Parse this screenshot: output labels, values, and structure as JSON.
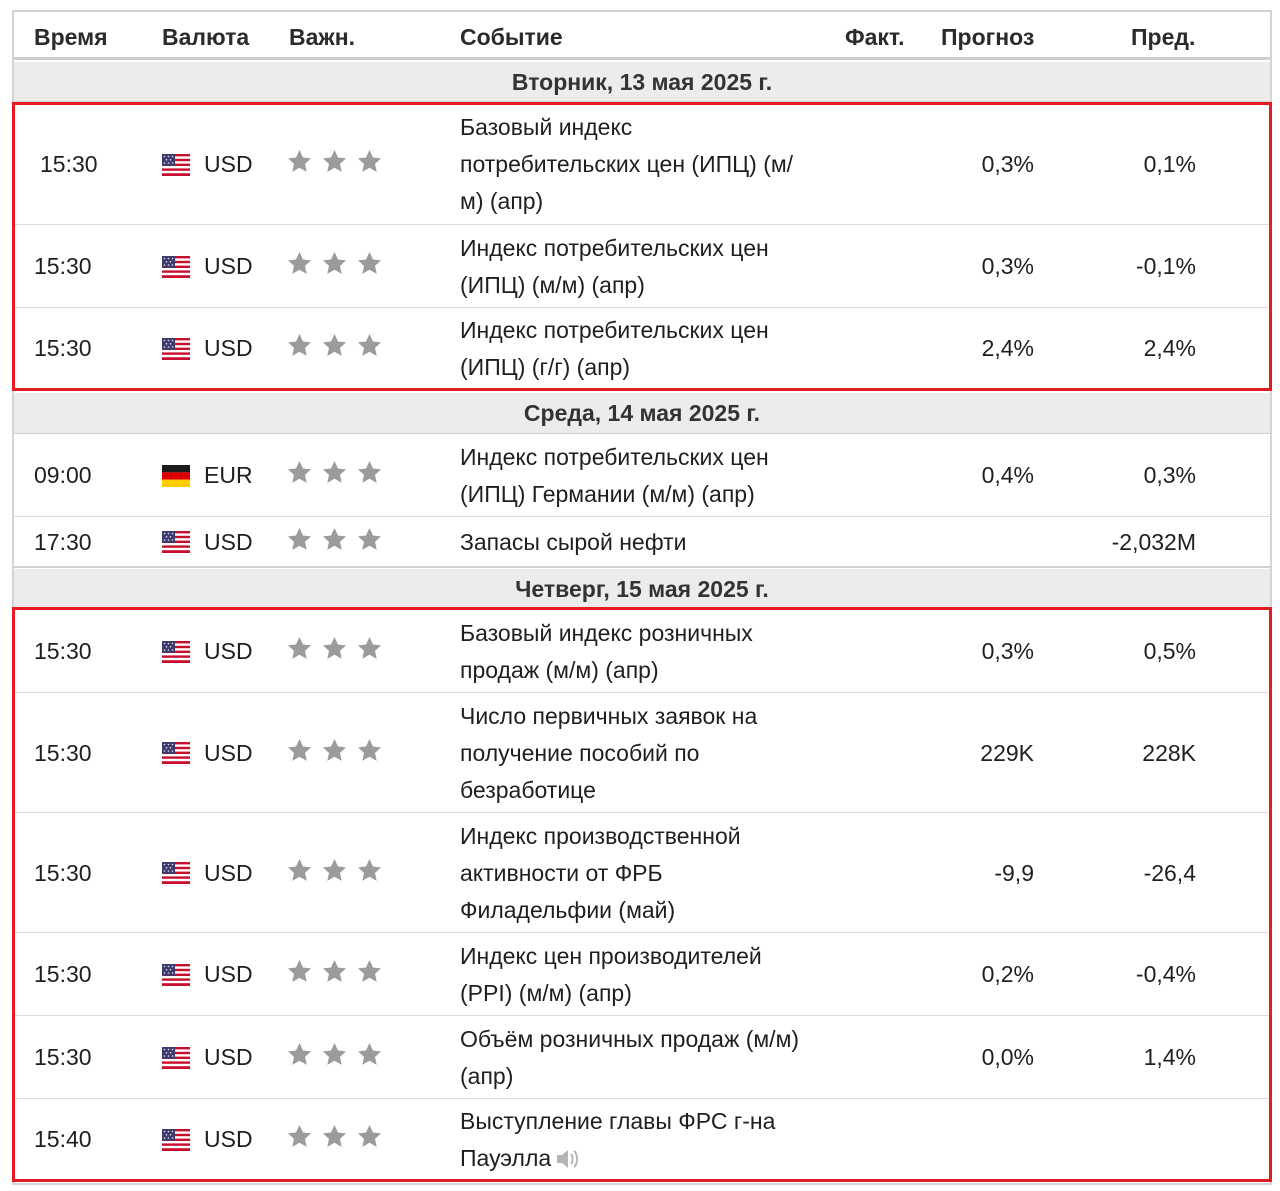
{
  "columns": {
    "time": "Время",
    "currency": "Валюта",
    "importance": "Важн.",
    "event": "Событие",
    "actual": "Факт.",
    "forecast": "Прогноз",
    "previous": "Пред."
  },
  "days": [
    {
      "label": "Вторник, 13 мая 2025 г.",
      "events": [
        {
          "time": "15:30",
          "flag": "us-flag-icon",
          "currency": "USD",
          "stars": 3,
          "event": "Базовый индекс потребительских цен (ИПЦ) (м/м) (апр)",
          "actual": "",
          "forecast": "0,3%",
          "previous": "0,1%"
        },
        {
          "time": "15:30",
          "flag": "us-flag-icon",
          "currency": "USD",
          "stars": 3,
          "event": "Индекс потребительских цен (ИПЦ) (м/м) (апр)",
          "actual": "",
          "forecast": "0,3%",
          "previous": "-0,1%"
        },
        {
          "time": "15:30",
          "flag": "us-flag-icon",
          "currency": "USD",
          "stars": 3,
          "event": "Индекс потребительских цен (ИПЦ) (г/г) (апр)",
          "actual": "",
          "forecast": "2,4%",
          "previous": "2,4%"
        }
      ]
    },
    {
      "label": "Среда, 14 мая 2025 г.",
      "events": [
        {
          "time": "09:00",
          "flag": "de-flag-icon",
          "currency": "EUR",
          "stars": 3,
          "event": "Индекс потребительских цен (ИПЦ) Германии (м/м) (апр)",
          "actual": "",
          "forecast": "0,4%",
          "previous": "0,3%"
        },
        {
          "time": "17:30",
          "flag": "us-flag-icon",
          "currency": "USD",
          "stars": 3,
          "event": "Запасы сырой нефти",
          "actual": "",
          "forecast": "",
          "previous": "-2,032M"
        }
      ]
    },
    {
      "label": "Четверг, 15 мая 2025 г.",
      "events": [
        {
          "time": "15:30",
          "flag": "us-flag-icon",
          "currency": "USD",
          "stars": 3,
          "event": "Базовый индекс розничных продаж (м/м) (апр)",
          "actual": "",
          "forecast": "0,3%",
          "previous": "0,5%"
        },
        {
          "time": "15:30",
          "flag": "us-flag-icon",
          "currency": "USD",
          "stars": 3,
          "event": "Число первичных заявок на получение пособий по безработице",
          "actual": "",
          "forecast": "229K",
          "previous": "228K"
        },
        {
          "time": "15:30",
          "flag": "us-flag-icon",
          "currency": "USD",
          "stars": 3,
          "event": "Индекс производственной активности от ФРБ Филадельфии (май)",
          "actual": "",
          "forecast": "-9,9",
          "previous": "-26,4"
        },
        {
          "time": "15:30",
          "flag": "us-flag-icon",
          "currency": "USD",
          "stars": 3,
          "event": "Индекс цен производителей (PPI) (м/м) (апр)",
          "actual": "",
          "forecast": "0,2%",
          "previous": "-0,4%"
        },
        {
          "time": "15:30",
          "flag": "us-flag-icon",
          "currency": "USD",
          "stars": 3,
          "event": "Объём розничных продаж (м/м) (апр)",
          "actual": "",
          "forecast": "0,0%",
          "previous": "1,4%"
        },
        {
          "time": "15:40",
          "flag": "us-flag-icon",
          "currency": "USD",
          "stars": 3,
          "event": "Выступление главы ФРС г-на Пауэлла",
          "actual": "",
          "forecast": "",
          "previous": "",
          "speaker_icon": "speaker-icon"
        }
      ]
    }
  ],
  "colors": {
    "highlight_border": "#e31b23",
    "star": "#9b9b9b",
    "day_row_bg": "#ececec"
  }
}
